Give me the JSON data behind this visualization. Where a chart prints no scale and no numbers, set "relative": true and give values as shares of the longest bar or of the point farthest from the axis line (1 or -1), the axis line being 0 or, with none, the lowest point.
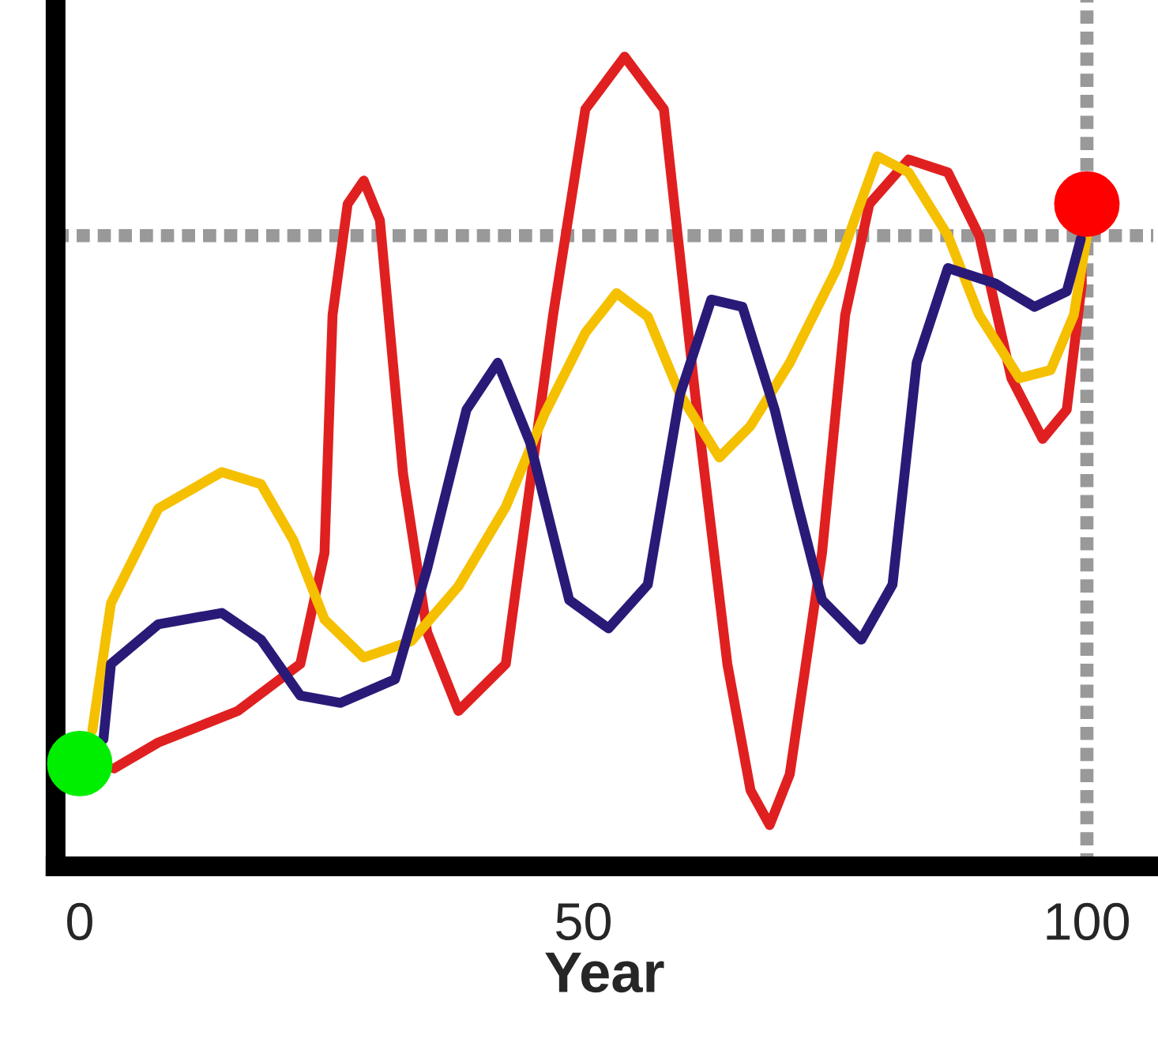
{
  "chart_data": {
    "type": "line",
    "relative": true,
    "xlabel": "Year",
    "xlim": [
      -2.4,
      106.6
    ],
    "xticks": [
      0,
      50,
      100
    ],
    "grid": false,
    "marker": "none",
    "line_style": "solid",
    "ref_lines": [
      {
        "axis": "y",
        "value": 0.779,
        "color": "#999999",
        "line_style": "dotted"
      },
      {
        "axis": "x",
        "value": 100,
        "color": "#999999",
        "line_style": "dotted"
      }
    ],
    "series": [
      {
        "color": "#e02020",
        "x": [
          3.4,
          7.8,
          15.7,
          21.9,
          24.3,
          25.1,
          26.6,
          28.2,
          29.8,
          32.1,
          34.5,
          37.6,
          42.3,
          47.0,
          50.2,
          54.1,
          58.0,
          61.1,
          64.3,
          66.6,
          68.5,
          70.5,
          73.7,
          76.0,
          78.4,
          82.3,
          86.2,
          89.3,
          92.5,
          95.6,
          98.0,
          99.5,
          99.4
        ],
        "values": [
          0.121,
          0.153,
          0.192,
          0.25,
          0.387,
          0.681,
          0.818,
          0.847,
          0.798,
          0.485,
          0.289,
          0.192,
          0.25,
          0.681,
          0.935,
          1.0,
          0.935,
          0.583,
          0.25,
          0.094,
          0.051,
          0.114,
          0.387,
          0.681,
          0.818,
          0.873,
          0.857,
          0.779,
          0.603,
          0.528,
          0.564,
          0.72,
          0.775
        ]
      },
      {
        "color": "#f5c000",
        "x": [
          1.25,
          3.1,
          7.8,
          14.1,
          18.0,
          21.2,
          24.3,
          28.2,
          32.9,
          37.6,
          42.3,
          46.2,
          50.2,
          53.3,
          56.4,
          59.6,
          63.5,
          66.6,
          70.5,
          75.2,
          79.2,
          82.3,
          86.2,
          89.3,
          93.3,
          96.4,
          98.7,
          100
        ],
        "values": [
          0.168,
          0.325,
          0.442,
          0.487,
          0.472,
          0.403,
          0.305,
          0.258,
          0.278,
          0.346,
          0.444,
          0.56,
          0.659,
          0.708,
          0.679,
          0.583,
          0.505,
          0.544,
          0.622,
          0.739,
          0.877,
          0.857,
          0.779,
          0.681,
          0.603,
          0.613,
          0.681,
          0.779
        ]
      },
      {
        "color": "#2a1a78",
        "x": [
          2.35,
          3.1,
          7.8,
          14.1,
          18.0,
          21.9,
          25.9,
          31.3,
          34.5,
          38.4,
          41.5,
          44.7,
          48.6,
          52.5,
          56.4,
          59.6,
          62.7,
          65.8,
          69.0,
          71.3,
          73.7,
          77.6,
          80.7,
          83.1,
          86.2,
          90.9,
          94.8,
          98.0,
          99.4
        ],
        "values": [
          0.157,
          0.25,
          0.299,
          0.313,
          0.28,
          0.211,
          0.202,
          0.231,
          0.368,
          0.564,
          0.622,
          0.524,
          0.329,
          0.294,
          0.348,
          0.583,
          0.7,
          0.691,
          0.564,
          0.446,
          0.329,
          0.28,
          0.348,
          0.622,
          0.739,
          0.72,
          0.691,
          0.71,
          0.775
        ]
      },
      {
        "type": "scatter",
        "marker": "circle",
        "color": "#00ee00",
        "x": [
          0
        ],
        "values": [
          0.127
        ]
      },
      {
        "type": "scatter",
        "marker": "circle",
        "color": "#ff0000",
        "x": [
          100
        ],
        "values": [
          0.818
        ]
      }
    ]
  }
}
